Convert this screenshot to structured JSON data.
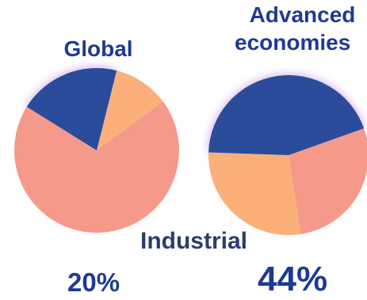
{
  "chart_data": [
    {
      "type": "pie",
      "title": "Global",
      "slices": [
        {
          "name": "Industrial",
          "value": 20,
          "color": "#2b4c9b"
        },
        {
          "name": "",
          "value": 11,
          "color": "#fbb07a"
        },
        {
          "name": "",
          "value": 69,
          "color": "#f5998a"
        }
      ],
      "highlight_label": "20%"
    },
    {
      "type": "pie",
      "title_line1": "Advanced",
      "title_line2": "economies",
      "slices": [
        {
          "name": "Industrial",
          "value": 44,
          "color": "#2b4c9b"
        },
        {
          "name": "",
          "value": 28,
          "color": "#f5998a"
        },
        {
          "name": "",
          "value": 28,
          "color": "#fbb07a"
        }
      ],
      "highlight_label": "44%"
    }
  ],
  "center_label": "Industrial",
  "colors": {
    "title": "#1f3a93",
    "industrial": "#2b4c9b",
    "glow": "#b77ce0"
  }
}
